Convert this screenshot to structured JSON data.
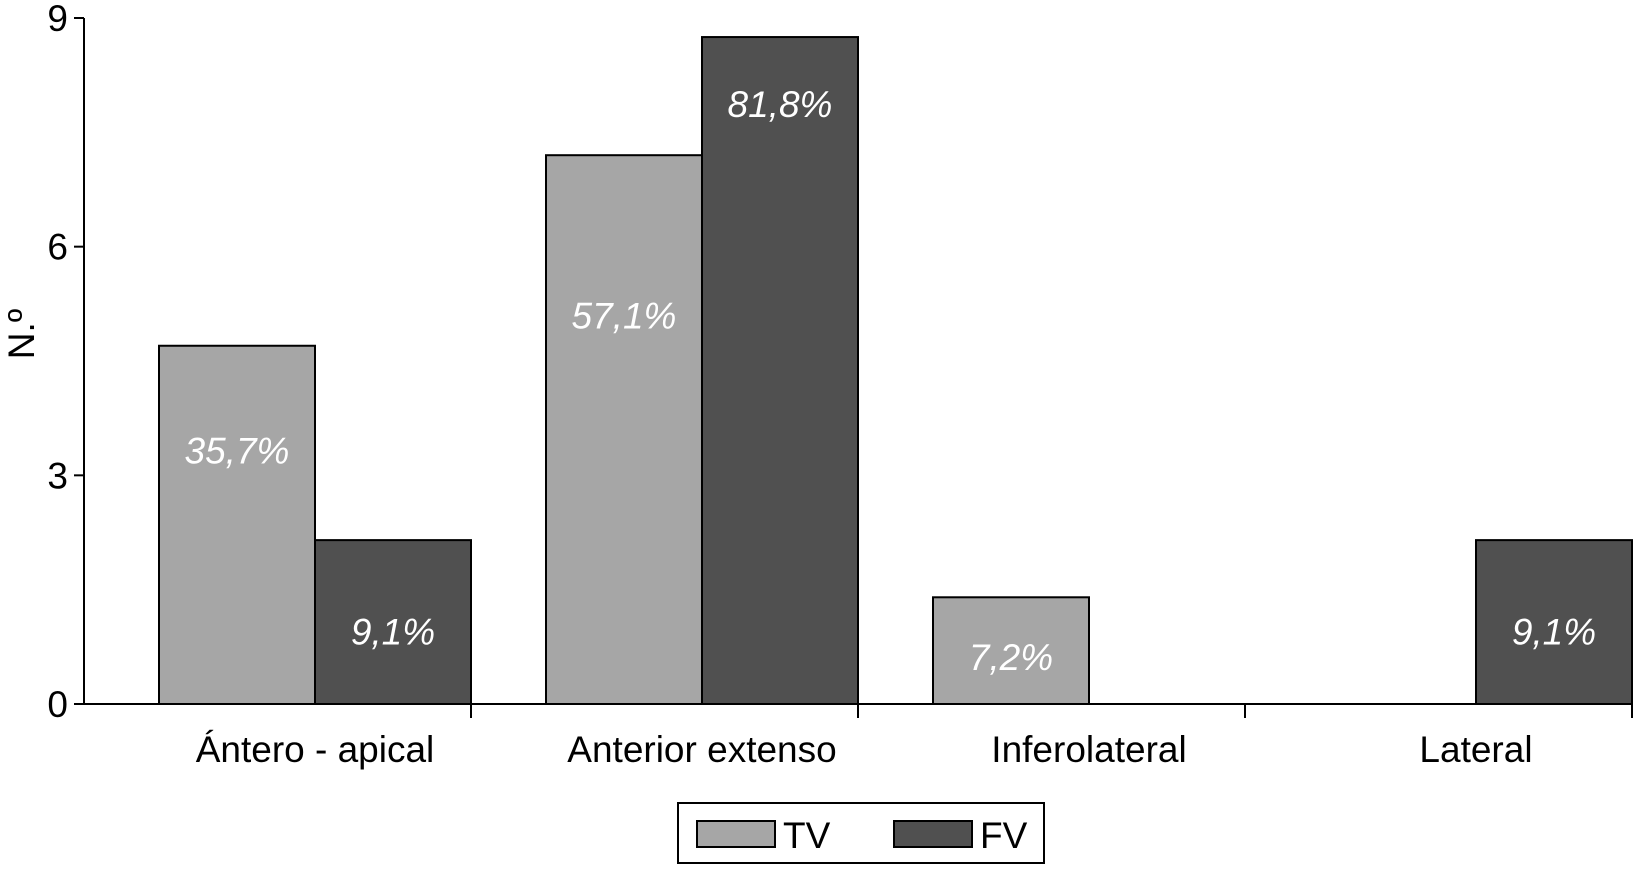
{
  "chart_data": {
    "type": "bar",
    "ylabel": "N.º",
    "xlabel": "",
    "ylim": [
      0,
      9
    ],
    "yticks": [
      0,
      3,
      6,
      9
    ],
    "categories": [
      "Ántero - apical",
      "Anterior extenso",
      "Inferolateral",
      "Lateral"
    ],
    "series": [
      {
        "name": "TV",
        "color": "#a6a6a6",
        "values": [
          4.7,
          7.2,
          1.4,
          0
        ],
        "labels": [
          "35,7%",
          "57,1%",
          "7,2%",
          ""
        ]
      },
      {
        "name": "FV",
        "color": "#505050",
        "values": [
          2.15,
          8.75,
          0,
          2.15
        ],
        "labels": [
          "9,1%",
          "81,8%",
          "",
          "9,1%"
        ]
      }
    ],
    "legend": "bottom-center",
    "grid": false
  }
}
